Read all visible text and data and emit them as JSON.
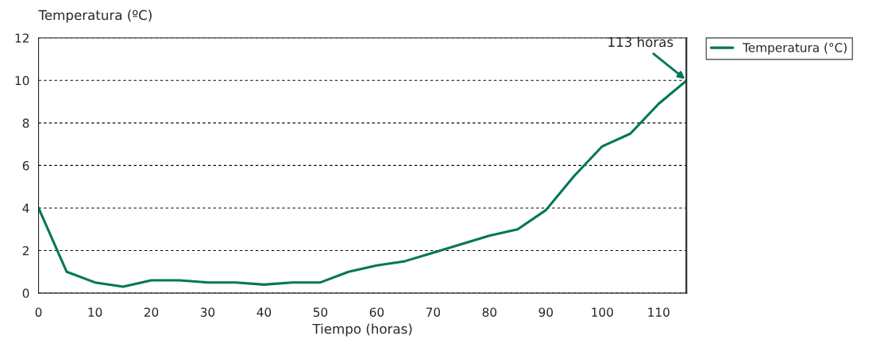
{
  "chart_data": {
    "type": "line",
    "xlabel": "Tiempo (horas)",
    "ylabel": "Temperatura (ºC)",
    "x": [
      0,
      5,
      10,
      15,
      20,
      25,
      30,
      35,
      40,
      45,
      50,
      55,
      60,
      65,
      70,
      75,
      80,
      85,
      90,
      95,
      100,
      105,
      110,
      115
    ],
    "series": [
      {
        "name": "Temperatura (°C)",
        "color": "#00765a",
        "values": [
          4.0,
          1.0,
          0.5,
          0.3,
          0.6,
          0.6,
          0.5,
          0.5,
          0.4,
          0.5,
          0.5,
          1.0,
          1.3,
          1.5,
          1.9,
          2.3,
          2.7,
          3.0,
          3.9,
          5.5,
          6.9,
          7.5,
          8.9,
          10.0
        ]
      }
    ],
    "xlim": [
      0,
      115
    ],
    "xticks": [
      0,
      10,
      20,
      30,
      40,
      50,
      60,
      70,
      80,
      90,
      100,
      110
    ],
    "ylim": [
      0,
      12
    ],
    "yticks": [
      0,
      2,
      4,
      6,
      8,
      10,
      12
    ],
    "grid": "y",
    "legend": "top right",
    "marker": "none",
    "line_style": "solid",
    "ref_lines": [
      {
        "axis": "x",
        "value": 115,
        "color": "#404040",
        "line_style": "solid"
      }
    ],
    "annotations": [
      {
        "text": "113 horas",
        "x": 115,
        "y": 10.0
      }
    ]
  }
}
